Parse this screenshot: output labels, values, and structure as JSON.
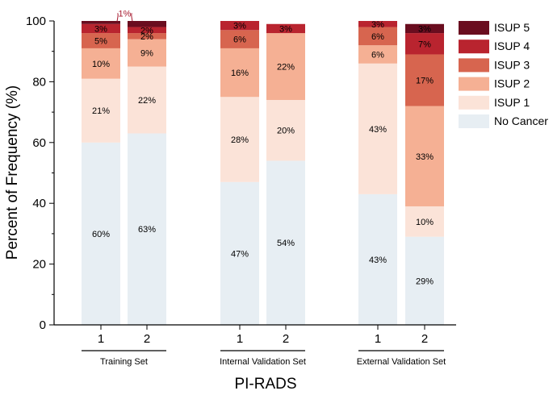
{
  "chart_data": {
    "type": "bar",
    "stacked": true,
    "xlabel": "PI-RADS",
    "ylabel": "Percent of Frequency (%)",
    "ylim": [
      0,
      100
    ],
    "yticks": [
      "0",
      "20",
      "40",
      "60",
      "80",
      "100"
    ],
    "grid": false,
    "legend_position": "top-right",
    "groups": [
      {
        "name": "Training Set",
        "bars": [
          {
            "category": "1",
            "values": [
              60,
              21,
              10,
              5,
              3,
              1
            ],
            "labels": [
              "60%",
              "21%",
              "10%",
              "5%",
              "3%",
              ""
            ],
            "callout": "1%"
          },
          {
            "category": "2",
            "values": [
              63,
              22,
              9,
              2,
              2,
              2
            ],
            "labels": [
              "63%",
              "22%",
              "9%",
              "2%",
              "2%",
              ""
            ]
          }
        ]
      },
      {
        "name": "Internal Validation Set",
        "bars": [
          {
            "category": "1",
            "values": [
              47,
              28,
              16,
              6,
              3,
              0
            ],
            "labels": [
              "47%",
              "28%",
              "16%",
              "6%",
              "3%",
              ""
            ]
          },
          {
            "category": "2",
            "values": [
              54,
              20,
              22,
              0,
              3,
              0
            ],
            "labels": [
              "54%",
              "20%",
              "22%",
              "",
              "3%",
              ""
            ]
          }
        ]
      },
      {
        "name": "External Validation Set",
        "bars": [
          {
            "category": "1",
            "values": [
              43,
              43,
              6,
              6,
              3,
              0
            ],
            "labels": [
              "43%",
              "43%",
              "6%",
              "6%",
              "3%",
              ""
            ]
          },
          {
            "category": "2",
            "values": [
              29,
              10,
              33,
              17,
              7,
              3
            ],
            "labels": [
              "29%",
              "10%",
              "33%",
              "17%",
              "7%",
              "3%"
            ]
          }
        ]
      }
    ],
    "series": [
      {
        "name": "No Cancer",
        "color": "#e7eef3"
      },
      {
        "name": "ISUP 1",
        "color": "#fbe3d8"
      },
      {
        "name": "ISUP 2",
        "color": "#f5b094"
      },
      {
        "name": "ISUP 3",
        "color": "#d7654f"
      },
      {
        "name": "ISUP 4",
        "color": "#b9242f"
      },
      {
        "name": "ISUP 5",
        "color": "#6a0d1f"
      }
    ],
    "legend_order": [
      "ISUP 5",
      "ISUP 4",
      "ISUP 3",
      "ISUP 2",
      "ISUP 1",
      "No Cancer"
    ]
  }
}
